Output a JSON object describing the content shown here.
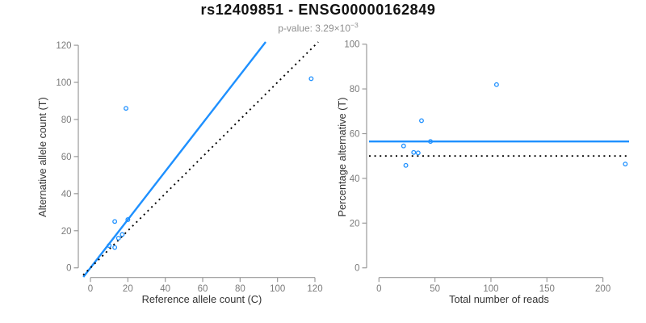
{
  "header": {
    "title": "rs12409851 - ENSG00000162849",
    "subtitle_prefix": "p-value: 3.29×10",
    "subtitle_exponent": "−3"
  },
  "colors": {
    "accent_blue": "#1E90FF",
    "dotted_black": "#000000",
    "axis": "#9a9a9a",
    "tick_label": "#7b7b7b",
    "axis_label": "#333333",
    "title": "#111111",
    "subtitle": "#8e8e8e",
    "background": "#ffffff"
  },
  "chart_data": [
    {
      "type": "scatter",
      "panel": "left",
      "xlabel": "Reference allele count (C)",
      "ylabel": "Alternative allele count (T)",
      "xlim": [
        0,
        120
      ],
      "ylim": [
        0,
        120
      ],
      "xticks": [
        0,
        20,
        40,
        60,
        80,
        100,
        120
      ],
      "yticks": [
        0,
        20,
        40,
        60,
        80,
        100,
        120
      ],
      "grid": false,
      "legend": "none",
      "marker": {
        "shape": "open-circle",
        "color": "#1E90FF",
        "radius": 2.3
      },
      "points": [
        [
          10,
          12
        ],
        [
          13,
          11
        ],
        [
          15,
          16
        ],
        [
          17,
          18
        ],
        [
          13,
          25
        ],
        [
          20,
          26
        ],
        [
          19,
          86
        ],
        [
          118,
          102
        ]
      ],
      "lines": [
        {
          "name": "fitted-allelic-ratio",
          "slope": 1.3,
          "intercept": 0,
          "style": "solid",
          "color": "#1E90FF"
        },
        {
          "name": "identity",
          "slope": 1,
          "intercept": 0,
          "style": "dotted",
          "color": "#000000"
        }
      ]
    },
    {
      "type": "scatter",
      "panel": "right",
      "xlabel": "Total number of reads",
      "ylabel": "Percentage alternative (T)",
      "xlim": [
        0,
        220
      ],
      "ylim": [
        0,
        100
      ],
      "xticks": [
        0,
        50,
        100,
        150,
        200
      ],
      "yticks": [
        0,
        20,
        40,
        60,
        80,
        100
      ],
      "grid": false,
      "legend": "none",
      "marker": {
        "shape": "open-circle",
        "color": "#1E90FF",
        "radius": 2.3
      },
      "points": [
        [
          22,
          54.5
        ],
        [
          24,
          45.8
        ],
        [
          31,
          51.6
        ],
        [
          35,
          51.4
        ],
        [
          38,
          65.8
        ],
        [
          46,
          56.5
        ],
        [
          105,
          81.9
        ],
        [
          220,
          46.4
        ]
      ],
      "lines": [
        {
          "name": "mean-percentage",
          "slope": 0,
          "intercept": 56.5,
          "style": "solid",
          "color": "#1E90FF"
        },
        {
          "name": "fifty-percent-expected",
          "slope": 0,
          "intercept": 50,
          "style": "dotted",
          "color": "#000000"
        }
      ]
    }
  ]
}
